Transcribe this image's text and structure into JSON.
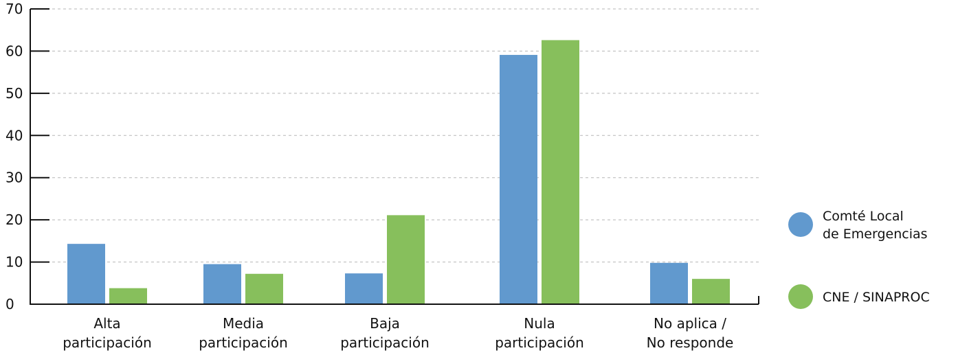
{
  "chart_data": {
    "type": "bar",
    "title": "",
    "xlabel": "",
    "ylabel": "",
    "ylim": [
      0,
      70
    ],
    "yticks": [
      0,
      10,
      20,
      30,
      40,
      50,
      60,
      70
    ],
    "grid": true,
    "legend_position": "right",
    "categories": [
      [
        "Alta",
        "participación"
      ],
      [
        "Media",
        "participación"
      ],
      [
        "Baja",
        "participación"
      ],
      [
        "Nula",
        "participación"
      ],
      [
        "No aplica /",
        "No responde"
      ]
    ],
    "series": [
      {
        "name": [
          "Comté Local",
          "de Emergencias"
        ],
        "color": "#6199ce",
        "values": [
          14.3,
          9.5,
          7.3,
          59.1,
          9.8
        ]
      },
      {
        "name": [
          "CNE / SINAPROC"
        ],
        "color": "#87bf5c",
        "values": [
          3.8,
          7.2,
          21.1,
          62.6,
          6.0
        ]
      }
    ]
  },
  "colors": {
    "axis": "#111111",
    "grid": "#b5b5b5"
  }
}
